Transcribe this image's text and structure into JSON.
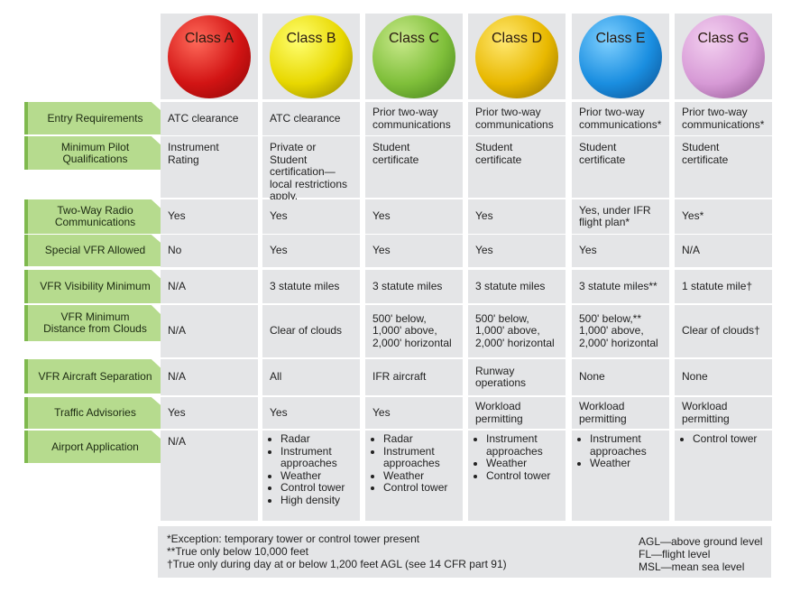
{
  "header": {
    "classes": [
      "Class A",
      "Class B",
      "Class C",
      "Class D",
      "Class E",
      "Class G"
    ]
  },
  "table": {
    "rows": [
      {
        "label": "Entry Requirements",
        "cells": [
          "ATC clearance",
          "ATC clearance",
          "Prior two-way\ncommunications",
          "Prior two-way\ncommunications",
          "Prior two-way\ncommunications*",
          "Prior two-way\ncommunications*"
        ]
      },
      {
        "label": "Minimum Pilot\nQualifications",
        "cells": [
          "Instrument\nRating",
          "Private or Student\ncertification—\nlocal restrictions\napply.",
          "Student\ncertificate",
          "Student\ncertificate",
          "Student\ncertificate",
          "Student\ncertificate"
        ]
      },
      {
        "label": "Two-Way Radio\nCommunications",
        "cells": [
          "Yes",
          "Yes",
          "Yes",
          "Yes",
          "Yes, under IFR\nflight plan*",
          "Yes*"
        ]
      },
      {
        "label": "Special VFR Allowed",
        "cells": [
          "No",
          "Yes",
          "Yes",
          "Yes",
          "Yes",
          "N/A"
        ]
      },
      {
        "label": "VFR Visibility Minimum",
        "cells": [
          "N/A",
          "3 statute miles",
          "3 statute miles",
          "3 statute miles",
          "3 statute miles**",
          "1 statute mile†"
        ]
      },
      {
        "label": "VFR Minimum\nDistance from Clouds",
        "cells": [
          "N/A",
          "Clear of clouds",
          "500' below,\n1,000' above,\n2,000' horizontal",
          "500' below,\n1,000' above,\n2,000' horizontal",
          "500' below,**\n1,000' above,\n2,000' horizontal",
          "Clear of clouds†"
        ]
      },
      {
        "label": "VFR Aircraft Separation",
        "cells": [
          "N/A",
          "All",
          "IFR aircraft",
          "Runway\noperations",
          "None",
          "None"
        ]
      },
      {
        "label": "Traffic Advisories",
        "cells": [
          "Yes",
          "Yes",
          "Yes",
          "Workload\npermitting",
          "Workload\npermitting",
          "Workload\npermitting"
        ]
      },
      {
        "label": "Airport Application",
        "cells": [
          "N/A",
          {
            "bullets": [
              "Radar",
              "Instrument\napproaches",
              "Weather",
              "Control tower",
              "High density"
            ]
          },
          {
            "bullets": [
              "Radar",
              "Instrument\napproaches",
              "Weather",
              "Control tower"
            ]
          },
          {
            "bullets": [
              "Instrument\napproaches",
              "Weather",
              "Control tower"
            ]
          },
          {
            "bullets": [
              "Instrument\napproaches",
              "Weather"
            ]
          },
          {
            "bullets": [
              "Control tower"
            ]
          }
        ]
      }
    ]
  },
  "footnotes": [
    "*Exception: temporary tower or control tower present",
    "**True only below 10,000 feet",
    "†True only during day at or below 1,200 feet AGL (see 14 CFR part 91)"
  ],
  "abbreviations": [
    "AGL—above ground level",
    "FL—flight level",
    "MSL—mean sea level"
  ]
}
